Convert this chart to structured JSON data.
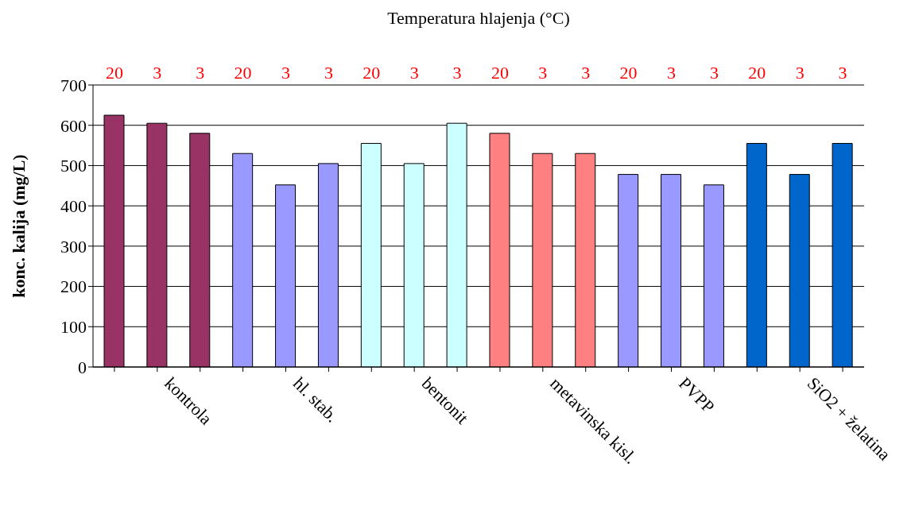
{
  "chart_data": {
    "type": "bar",
    "xlabel": "Temperatura hlajenja (°C)",
    "ylabel": "konc. kalija (mg/L)",
    "categories": [
      null,
      "kontrola",
      null,
      null,
      "hl. stab.",
      null,
      null,
      "bentonit",
      null,
      null,
      "metavinska kisl.",
      null,
      null,
      "PVPP",
      null,
      null,
      "SiO2 + želatina",
      null
    ],
    "values": [
      625,
      605,
      580,
      530,
      452,
      505,
      555,
      505,
      605,
      580,
      530,
      530,
      478,
      478,
      452,
      555,
      478,
      555
    ],
    "colors": [
      "#993366",
      "#993366",
      "#993366",
      "#9999ff",
      "#9999ff",
      "#9999ff",
      "#ccffff",
      "#ccffff",
      "#ccffff",
      "#ff8080",
      "#ff8080",
      "#ff8080",
      "#9999ff",
      "#9999ff",
      "#9999ff",
      "#0066cc",
      "#0066cc",
      "#0066cc"
    ],
    "annotations": [
      "20",
      "3",
      "3",
      "20",
      "3",
      "3",
      "20",
      "3",
      "3",
      "20",
      "3",
      "3",
      "20",
      "3",
      "3",
      "20",
      "3",
      "3"
    ],
    "ylim": [
      0,
      700
    ],
    "yticks": [
      0,
      100,
      200,
      300,
      400,
      500,
      600,
      700
    ],
    "grid": "y"
  }
}
